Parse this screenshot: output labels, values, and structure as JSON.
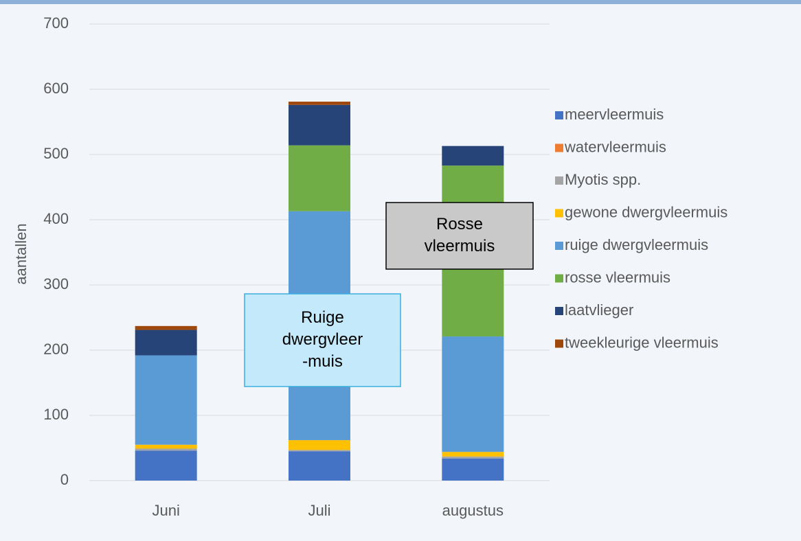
{
  "chart_data": {
    "type": "stacked_bar",
    "y_label": "aantallen",
    "categories": [
      "Juni",
      "Juli",
      "augustus"
    ],
    "series": [
      {
        "name": "meervleermuis",
        "color": "#4472c4",
        "values": [
          46,
          45,
          34
        ]
      },
      {
        "name": "watervleermuis",
        "color": "#ed7d31",
        "values": [
          0,
          0,
          0
        ]
      },
      {
        "name": "Myotis spp.",
        "color": "#a5a5a5",
        "values": [
          3,
          2,
          3
        ]
      },
      {
        "name": "gewone dwergvleermuis",
        "color": "#ffc000",
        "values": [
          6,
          15,
          7
        ]
      },
      {
        "name": "ruige dwergvleermuis",
        "color": "#5b9bd5",
        "values": [
          137,
          351,
          177
        ]
      },
      {
        "name": "rosse vleermuis",
        "color": "#70ad47",
        "values": [
          0,
          101,
          262
        ]
      },
      {
        "name": "laatvlieger",
        "color": "#264478",
        "values": [
          39,
          62,
          30
        ]
      },
      {
        "name": "tweekleurige vleermuis",
        "color": "#9e480e",
        "values": [
          6,
          5,
          0
        ]
      }
    ],
    "ylim": [
      0,
      700
    ],
    "yticks": [
      0,
      100,
      200,
      300,
      400,
      500,
      600,
      700
    ],
    "grid": true,
    "legend": "right",
    "annotations": [
      {
        "lines": [
          "Ruige",
          "dwergvleer",
          "-muis"
        ]
      },
      {
        "lines": [
          "Rosse",
          "vleermuis"
        ]
      }
    ]
  }
}
